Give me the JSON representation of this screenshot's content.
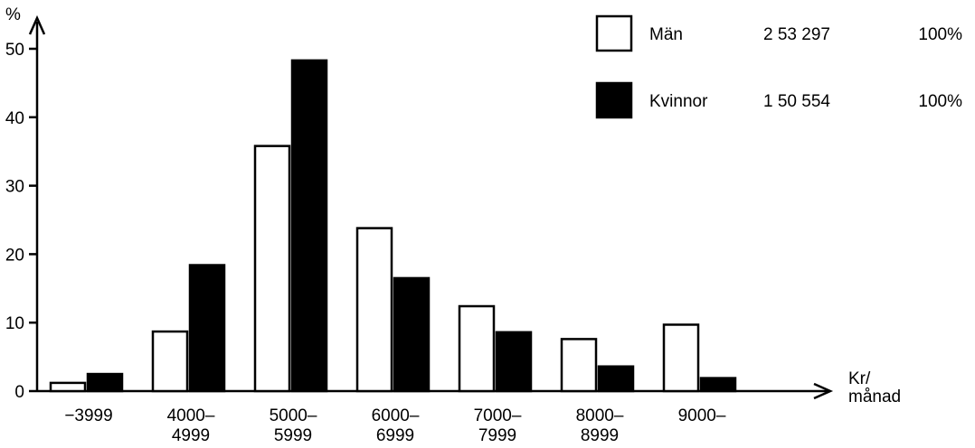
{
  "chart_data": {
    "type": "bar",
    "ylabel": "%",
    "xlabel_lines": [
      "Kr/",
      "månad"
    ],
    "ylim": [
      0,
      50
    ],
    "yticks": [
      0,
      10,
      20,
      30,
      40,
      50
    ],
    "grid": false,
    "legend_position": "top-right",
    "categories": [
      [
        "−3999"
      ],
      [
        "4000–",
        "4999"
      ],
      [
        "5000–",
        "5999"
      ],
      [
        "6000–",
        "6999"
      ],
      [
        "7000–",
        "7999"
      ],
      [
        "8000–",
        "8999"
      ],
      [
        "9000–"
      ]
    ],
    "series": [
      {
        "name": "Män",
        "count": "2 53 297",
        "total": "100%",
        "fill": "#ffffff",
        "values": [
          1.2,
          8.7,
          35.8,
          23.8,
          12.4,
          7.6,
          9.7
        ]
      },
      {
        "name": "Kvinnor",
        "count": "1 50 554",
        "total": "100%",
        "fill": "#000000",
        "values": [
          2.5,
          18.4,
          48.3,
          16.5,
          8.6,
          3.6,
          1.9
        ]
      }
    ]
  }
}
